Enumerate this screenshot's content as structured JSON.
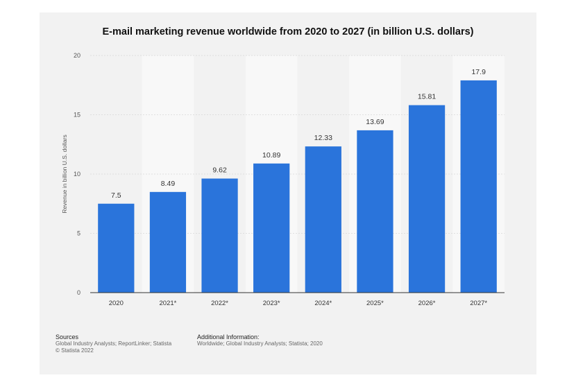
{
  "chart_data": {
    "type": "bar",
    "title": "E-mail marketing revenue worldwide from 2020 to 2027 (in billion U.S. dollars)",
    "xlabel": "",
    "ylabel": "Revenue in billion U.S. dollars",
    "categories": [
      "2020",
      "2021*",
      "2022*",
      "2023*",
      "2024*",
      "2025*",
      "2026*",
      "2027*"
    ],
    "values": [
      7.5,
      8.49,
      9.62,
      10.89,
      12.33,
      13.69,
      15.81,
      17.9
    ],
    "data_labels": [
      "7.5",
      "8.49",
      "9.62",
      "10.89",
      "12.33",
      "13.69",
      "15.81",
      "17.9"
    ],
    "ylim": [
      0,
      20
    ],
    "yticks": [
      "0",
      "5",
      "10",
      "15",
      "20"
    ],
    "grid": true,
    "legend": "none",
    "colors": {
      "bar": "#2a74db",
      "card_background": "#f2f2f2",
      "alternate_band": "#f8f8f8"
    }
  },
  "footer": {
    "sources_heading": "Sources",
    "sources_line1": "Global Industry Analysts; ReportLinker; Statista",
    "sources_line2": "© Statista 2022",
    "additional_heading": "Additional Information:",
    "additional_line1": "Worldwide; Global Industry Analysts; Statista; 2020"
  }
}
